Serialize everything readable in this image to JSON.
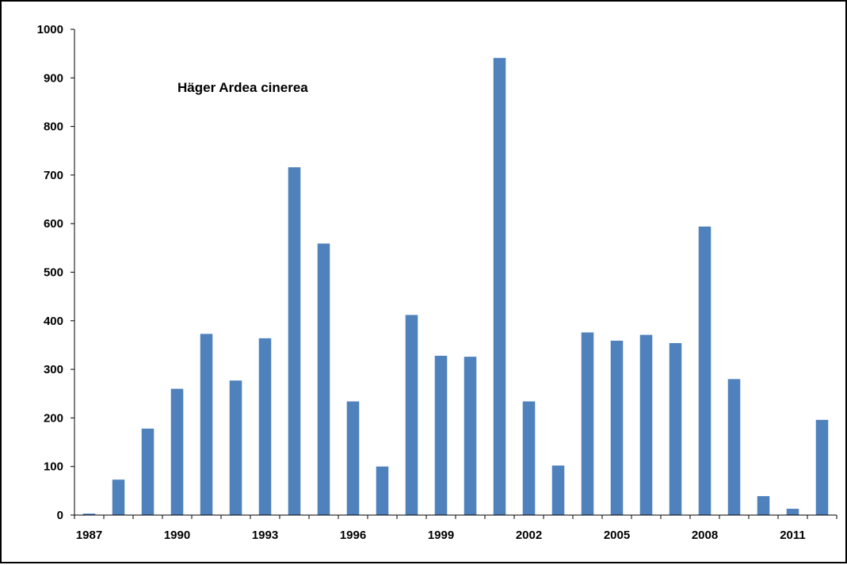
{
  "chart_data": {
    "type": "bar",
    "title": "Häger Ardea cinerea",
    "xlabel": "",
    "ylabel": "",
    "ylim": [
      0,
      1000
    ],
    "yticks": [
      0,
      100,
      200,
      300,
      400,
      500,
      600,
      700,
      800,
      900,
      1000
    ],
    "ytick_labels": [
      "0",
      "100",
      "200",
      "300",
      "400",
      "500",
      "600",
      "700",
      "800",
      "900",
      "1000"
    ],
    "categories": [
      "1987",
      "1988",
      "1989",
      "1990",
      "1991",
      "1992",
      "1993",
      "1994",
      "1995",
      "1996",
      "1997",
      "1998",
      "1999",
      "2000",
      "2001",
      "2002",
      "2003",
      "2004",
      "2005",
      "2006",
      "2007",
      "2008",
      "2009",
      "2010",
      "2011",
      "2012"
    ],
    "xtick_labels": [
      "1987",
      "1990",
      "1993",
      "1996",
      "1999",
      "2002",
      "2005",
      "2008",
      "2011"
    ],
    "values": [
      3,
      73,
      178,
      260,
      373,
      277,
      364,
      716,
      559,
      234,
      100,
      412,
      328,
      326,
      941,
      234,
      102,
      376,
      359,
      371,
      354,
      594,
      280,
      39,
      13,
      196
    ],
    "grid": false,
    "legend": "none",
    "bar_color": "#4F81BD"
  }
}
